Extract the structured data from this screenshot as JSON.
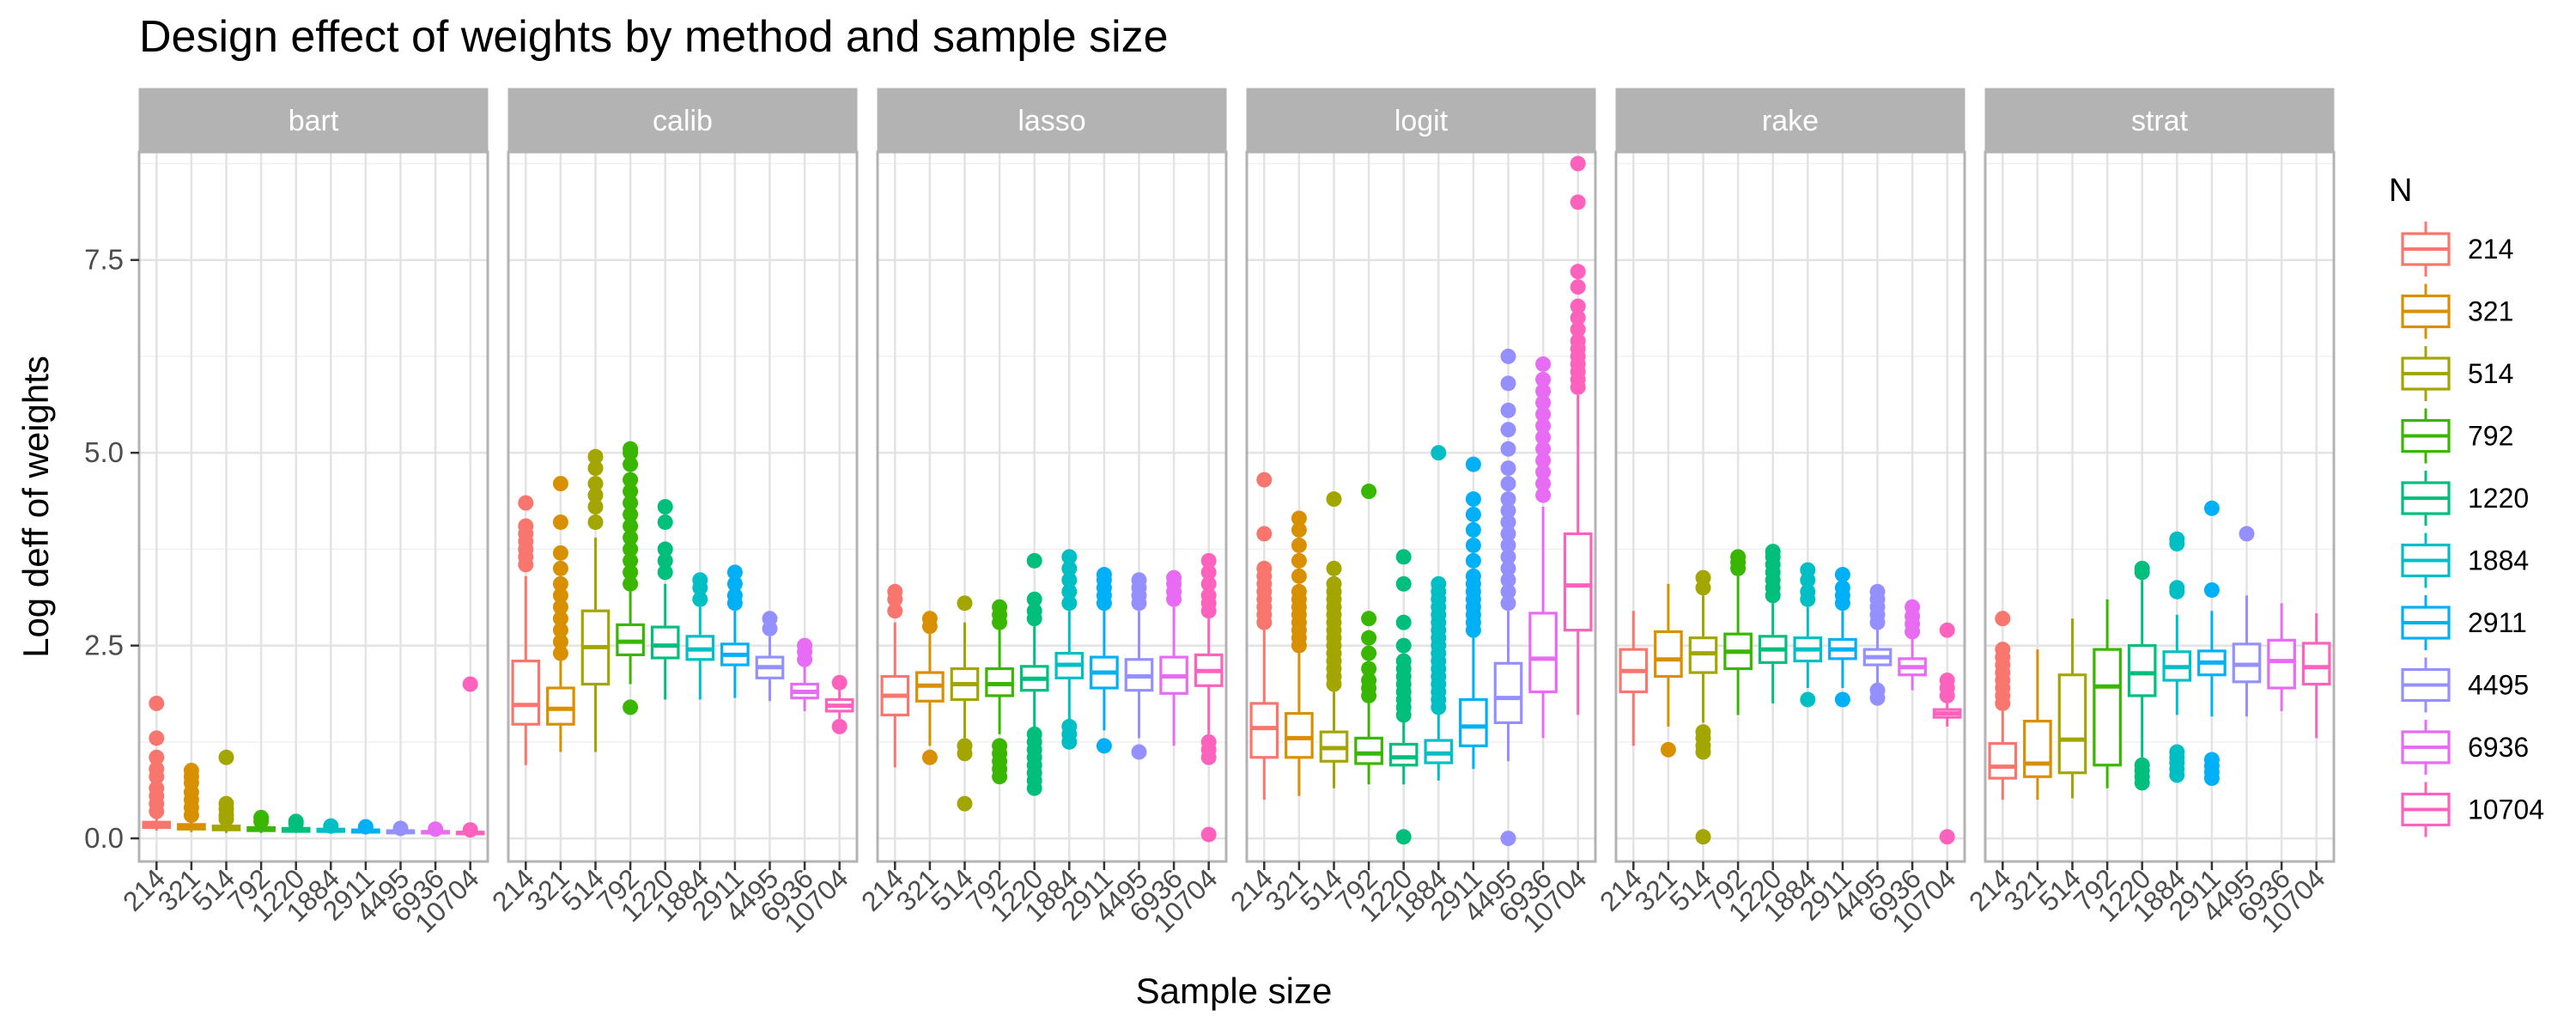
{
  "chart_data": {
    "type": "box",
    "title": "Design effect of weights by method and sample size",
    "xlabel": "Sample size",
    "ylabel": "Log deff of weights",
    "ylim": [
      -0.3,
      8.9
    ],
    "y_ticks": [
      "0.0",
      "2.5",
      "5.0",
      "7.5"
    ],
    "y_tick_values": [
      0,
      2.5,
      5,
      7.5
    ],
    "grid": true,
    "legend": {
      "title": "N",
      "placement": "right"
    },
    "categories": [
      "214",
      "321",
      "514",
      "792",
      "1220",
      "1884",
      "2911",
      "4495",
      "6936",
      "10704"
    ],
    "colors": [
      "#F8766D",
      "#D89000",
      "#A3A500",
      "#39B600",
      "#00BF7D",
      "#00BFC4",
      "#00B0F6",
      "#9590FF",
      "#E76BF3",
      "#FF62BC"
    ],
    "panels": [
      {
        "name": "bart",
        "boxes": [
          {
            "q1": 0.14,
            "median": 0.17,
            "q3": 0.21,
            "lo": 0.1,
            "hi": 0.3,
            "outliers": [
              0.35,
              0.45,
              0.55,
              0.65,
              0.8,
              0.9,
              1.05,
              1.3,
              1.75
            ]
          },
          {
            "q1": 0.12,
            "median": 0.15,
            "q3": 0.18,
            "lo": 0.08,
            "hi": 0.25,
            "outliers": [
              0.3,
              0.4,
              0.5,
              0.6,
              0.72,
              0.8,
              0.88
            ]
          },
          {
            "q1": 0.11,
            "median": 0.13,
            "q3": 0.16,
            "lo": 0.07,
            "hi": 0.2,
            "outliers": [
              0.25,
              0.3,
              0.38,
              0.45,
              1.05
            ]
          },
          {
            "q1": 0.1,
            "median": 0.12,
            "q3": 0.14,
            "lo": 0.07,
            "hi": 0.18,
            "outliers": [
              0.22,
              0.27
            ]
          },
          {
            "q1": 0.09,
            "median": 0.11,
            "q3": 0.13,
            "lo": 0.07,
            "hi": 0.16,
            "outliers": [
              0.19,
              0.22
            ]
          },
          {
            "q1": 0.09,
            "median": 0.1,
            "q3": 0.12,
            "lo": 0.07,
            "hi": 0.14,
            "outliers": [
              0.16
            ]
          },
          {
            "q1": 0.08,
            "median": 0.1,
            "q3": 0.11,
            "lo": 0.06,
            "hi": 0.13,
            "outliers": [
              0.15
            ]
          },
          {
            "q1": 0.07,
            "median": 0.09,
            "q3": 0.1,
            "lo": 0.05,
            "hi": 0.12,
            "outliers": [
              0.13
            ]
          },
          {
            "q1": 0.07,
            "median": 0.08,
            "q3": 0.09,
            "lo": 0.05,
            "hi": 0.11,
            "outliers": [
              0.12
            ]
          },
          {
            "q1": 0.06,
            "median": 0.07,
            "q3": 0.08,
            "lo": 0.04,
            "hi": 0.1,
            "outliers": [
              0.11,
              2.0
            ]
          }
        ]
      },
      {
        "name": "calib",
        "boxes": [
          {
            "q1": 1.48,
            "median": 1.73,
            "q3": 2.3,
            "lo": 0.95,
            "hi": 3.4,
            "outliers": [
              3.55,
              3.65,
              3.75,
              3.85,
              3.95,
              4.05,
              4.35
            ]
          },
          {
            "q1": 1.48,
            "median": 1.68,
            "q3": 1.95,
            "lo": 1.12,
            "hi": 2.3,
            "outliers": [
              2.4,
              2.55,
              2.7,
              2.85,
              3.0,
              3.15,
              3.3,
              3.5,
              3.7,
              4.1,
              4.6
            ]
          },
          {
            "q1": 2.0,
            "median": 2.48,
            "q3": 2.95,
            "lo": 1.12,
            "hi": 3.9,
            "outliers": [
              4.1,
              4.3,
              4.45,
              4.6,
              4.8,
              4.95
            ]
          },
          {
            "q1": 2.38,
            "median": 2.55,
            "q3": 2.77,
            "lo": 2.0,
            "hi": 3.2,
            "outliers": [
              1.7,
              3.3,
              3.45,
              3.6,
              3.75,
              3.9,
              4.05,
              4.2,
              4.35,
              4.5,
              4.65,
              4.85,
              5.0,
              5.05
            ]
          },
          {
            "q1": 2.34,
            "median": 2.5,
            "q3": 2.74,
            "lo": 1.8,
            "hi": 3.3,
            "outliers": [
              3.45,
              3.6,
              3.75,
              4.1,
              4.3
            ]
          },
          {
            "q1": 2.32,
            "median": 2.45,
            "q3": 2.62,
            "lo": 1.8,
            "hi": 3.0,
            "outliers": [
              3.1,
              3.25,
              3.35
            ]
          },
          {
            "q1": 2.25,
            "median": 2.38,
            "q3": 2.52,
            "lo": 1.82,
            "hi": 2.95,
            "outliers": [
              3.05,
              3.15,
              3.3,
              3.45
            ]
          },
          {
            "q1": 2.08,
            "median": 2.22,
            "q3": 2.35,
            "lo": 1.78,
            "hi": 2.62,
            "outliers": [
              2.72,
              2.85
            ]
          },
          {
            "q1": 1.82,
            "median": 1.9,
            "q3": 2.0,
            "lo": 1.65,
            "hi": 2.25,
            "outliers": [
              2.32,
              2.42,
              2.5
            ]
          },
          {
            "q1": 1.65,
            "median": 1.72,
            "q3": 1.8,
            "lo": 1.55,
            "hi": 1.95,
            "outliers": [
              1.45,
              2.02
            ]
          }
        ]
      },
      {
        "name": "lasso",
        "boxes": [
          {
            "q1": 1.6,
            "median": 1.85,
            "q3": 2.1,
            "lo": 0.92,
            "hi": 2.8,
            "outliers": [
              2.95,
              3.1,
              3.2
            ]
          },
          {
            "q1": 1.78,
            "median": 1.98,
            "q3": 2.15,
            "lo": 1.2,
            "hi": 2.65,
            "outliers": [
              1.05,
              2.75,
              2.85
            ]
          },
          {
            "q1": 1.8,
            "median": 2.0,
            "q3": 2.2,
            "lo": 1.3,
            "hi": 2.8,
            "outliers": [
              0.45,
              1.1,
              1.2,
              3.05
            ]
          },
          {
            "q1": 1.85,
            "median": 2.0,
            "q3": 2.2,
            "lo": 1.35,
            "hi": 2.7,
            "outliers": [
              0.8,
              0.9,
              1.0,
              1.1,
              1.2,
              2.8,
              2.9,
              3.0
            ]
          },
          {
            "q1": 1.92,
            "median": 2.07,
            "q3": 2.23,
            "lo": 1.4,
            "hi": 2.75,
            "outliers": [
              0.65,
              0.75,
              0.85,
              0.95,
              1.05,
              1.15,
              1.25,
              1.35,
              2.85,
              2.95,
              3.1,
              3.6
            ]
          },
          {
            "q1": 2.08,
            "median": 2.25,
            "q3": 2.4,
            "lo": 1.5,
            "hi": 2.95,
            "outliers": [
              1.25,
              1.35,
              1.45,
              3.05,
              3.2,
              3.35,
              3.5,
              3.65
            ]
          },
          {
            "q1": 1.95,
            "median": 2.15,
            "q3": 2.35,
            "lo": 1.4,
            "hi": 2.95,
            "outliers": [
              1.2,
              3.05,
              3.15,
              3.25,
              3.35,
              3.42
            ]
          },
          {
            "q1": 1.92,
            "median": 2.1,
            "q3": 2.32,
            "lo": 1.3,
            "hi": 2.95,
            "outliers": [
              1.12,
              3.05,
              3.15,
              3.25,
              3.35
            ]
          },
          {
            "q1": 1.88,
            "median": 2.1,
            "q3": 2.35,
            "lo": 1.2,
            "hi": 3.0,
            "outliers": [
              3.1,
              3.2,
              3.3,
              3.38
            ]
          },
          {
            "q1": 1.98,
            "median": 2.17,
            "q3": 2.38,
            "lo": 1.35,
            "hi": 2.85,
            "outliers": [
              0.05,
              1.05,
              1.15,
              1.25,
              2.95,
              3.05,
              3.15,
              3.3,
              3.45,
              3.6
            ]
          }
        ]
      },
      {
        "name": "logit",
        "boxes": [
          {
            "q1": 1.05,
            "median": 1.43,
            "q3": 1.75,
            "lo": 0.5,
            "hi": 2.7,
            "outliers": [
              2.8,
              2.9,
              3.0,
              3.1,
              3.2,
              3.3,
              3.4,
              3.5,
              3.95,
              4.65
            ]
          },
          {
            "q1": 1.05,
            "median": 1.3,
            "q3": 1.62,
            "lo": 0.55,
            "hi": 2.4,
            "outliers": [
              2.5,
              2.6,
              2.7,
              2.8,
              2.9,
              3.0,
              3.1,
              3.2,
              3.4,
              3.6,
              3.8,
              4.0,
              4.15
            ]
          },
          {
            "q1": 1.0,
            "median": 1.17,
            "q3": 1.38,
            "lo": 0.65,
            "hi": 1.9,
            "outliers": [
              2.0,
              2.1,
              2.2,
              2.3,
              2.4,
              2.5,
              2.6,
              2.7,
              2.8,
              2.9,
              3.0,
              3.1,
              3.2,
              3.3,
              3.5,
              4.4
            ]
          },
          {
            "q1": 0.97,
            "median": 1.1,
            "q3": 1.3,
            "lo": 0.7,
            "hi": 1.75,
            "outliers": [
              1.85,
              1.95,
              2.05,
              2.2,
              2.4,
              2.6,
              2.85,
              4.5
            ]
          },
          {
            "q1": 0.95,
            "median": 1.05,
            "q3": 1.22,
            "lo": 0.7,
            "hi": 1.55,
            "outliers": [
              0.02,
              1.6,
              1.7,
              1.8,
              1.9,
              2.0,
              2.1,
              2.2,
              2.3,
              2.5,
              2.8,
              3.3,
              3.65
            ]
          },
          {
            "q1": 0.98,
            "median": 1.1,
            "q3": 1.27,
            "lo": 0.75,
            "hi": 1.62,
            "outliers": [
              1.7,
              1.8,
              1.9,
              2.0,
              2.1,
              2.2,
              2.3,
              2.4,
              2.5,
              2.6,
              2.7,
              2.8,
              2.9,
              3.0,
              3.1,
              3.2,
              3.3,
              5.0
            ]
          },
          {
            "q1": 1.2,
            "median": 1.45,
            "q3": 1.8,
            "lo": 0.9,
            "hi": 2.6,
            "outliers": [
              2.7,
              2.8,
              2.9,
              3.0,
              3.1,
              3.2,
              3.3,
              3.4,
              3.6,
              3.8,
              4.0,
              4.2,
              4.4,
              4.85
            ]
          },
          {
            "q1": 1.5,
            "median": 1.82,
            "q3": 2.27,
            "lo": 1.0,
            "hi": 2.95,
            "outliers": [
              0.0,
              3.05,
              3.2,
              3.35,
              3.5,
              3.65,
              3.8,
              3.95,
              4.1,
              4.25,
              4.4,
              4.6,
              4.8,
              5.05,
              5.3,
              5.55,
              5.9,
              6.25
            ]
          },
          {
            "q1": 1.9,
            "median": 2.33,
            "q3": 2.92,
            "lo": 1.3,
            "hi": 4.3,
            "outliers": [
              4.45,
              4.6,
              4.75,
              4.9,
              5.05,
              5.2,
              5.35,
              5.5,
              5.65,
              5.8,
              5.95,
              6.15
            ]
          },
          {
            "q1": 2.7,
            "median": 3.28,
            "q3": 3.95,
            "lo": 1.6,
            "hi": 5.75,
            "outliers": [
              5.85,
              5.95,
              6.05,
              6.15,
              6.25,
              6.35,
              6.45,
              6.6,
              6.75,
              6.9,
              7.15,
              7.35,
              8.25,
              8.75
            ]
          }
        ]
      },
      {
        "name": "rake",
        "boxes": [
          {
            "q1": 1.9,
            "median": 2.17,
            "q3": 2.45,
            "lo": 1.2,
            "hi": 2.95,
            "outliers": []
          },
          {
            "q1": 2.1,
            "median": 2.32,
            "q3": 2.68,
            "lo": 1.45,
            "hi": 3.3,
            "outliers": [
              1.15
            ]
          },
          {
            "q1": 2.15,
            "median": 2.4,
            "q3": 2.6,
            "lo": 1.5,
            "hi": 3.15,
            "outliers": [
              0.02,
              1.12,
              1.2,
              1.3,
              1.38,
              3.25,
              3.38
            ]
          },
          {
            "q1": 2.2,
            "median": 2.42,
            "q3": 2.65,
            "lo": 1.6,
            "hi": 3.4,
            "outliers": [
              3.5,
              3.58,
              3.65
            ]
          },
          {
            "q1": 2.28,
            "median": 2.45,
            "q3": 2.62,
            "lo": 1.75,
            "hi": 3.05,
            "outliers": [
              3.15,
              3.25,
              3.35,
              3.45,
              3.55,
              3.65,
              3.72
            ]
          },
          {
            "q1": 2.3,
            "median": 2.45,
            "q3": 2.6,
            "lo": 1.95,
            "hi": 3.0,
            "outliers": [
              1.8,
              3.1,
              3.2,
              3.35,
              3.48
            ]
          },
          {
            "q1": 2.33,
            "median": 2.45,
            "q3": 2.58,
            "lo": 1.95,
            "hi": 2.95,
            "outliers": [
              1.8,
              3.05,
              3.15,
              3.25,
              3.42
            ]
          },
          {
            "q1": 2.25,
            "median": 2.35,
            "q3": 2.45,
            "lo": 2.0,
            "hi": 2.72,
            "outliers": [
              1.82,
              1.92,
              2.8,
              2.9,
              3.0,
              3.1,
              3.2
            ]
          },
          {
            "q1": 2.12,
            "median": 2.22,
            "q3": 2.33,
            "lo": 1.92,
            "hi": 2.6,
            "outliers": [
              2.68,
              2.78,
              2.88,
              3.0
            ]
          },
          {
            "q1": 1.57,
            "median": 1.62,
            "q3": 1.67,
            "lo": 1.45,
            "hi": 1.78,
            "outliers": [
              0.02,
              1.85,
              1.95,
              2.05,
              2.7
            ]
          }
        ]
      },
      {
        "name": "strat",
        "boxes": [
          {
            "q1": 0.78,
            "median": 0.93,
            "q3": 1.23,
            "lo": 0.5,
            "hi": 1.65,
            "outliers": [
              1.75,
              1.85,
              1.95,
              2.05,
              2.15,
              2.25,
              2.35,
              2.45,
              2.85
            ]
          },
          {
            "q1": 0.8,
            "median": 0.97,
            "q3": 1.52,
            "lo": 0.5,
            "hi": 2.45,
            "outliers": []
          },
          {
            "q1": 0.85,
            "median": 1.28,
            "q3": 2.12,
            "lo": 0.52,
            "hi": 2.85,
            "outliers": []
          },
          {
            "q1": 0.95,
            "median": 1.97,
            "q3": 2.45,
            "lo": 0.65,
            "hi": 3.1,
            "outliers": []
          },
          {
            "q1": 1.85,
            "median": 2.14,
            "q3": 2.5,
            "lo": 1.05,
            "hi": 3.35,
            "outliers": [
              0.72,
              0.8,
              0.88,
              0.95,
              3.45,
              3.5
            ]
          },
          {
            "q1": 2.05,
            "median": 2.22,
            "q3": 2.42,
            "lo": 1.6,
            "hi": 2.9,
            "outliers": [
              0.82,
              0.9,
              0.98,
              1.05,
              1.12,
              3.2,
              3.25,
              3.82,
              3.88
            ]
          },
          {
            "q1": 2.12,
            "median": 2.28,
            "q3": 2.43,
            "lo": 1.58,
            "hi": 2.95,
            "outliers": [
              0.78,
              0.86,
              0.94,
              1.02,
              3.22,
              4.28
            ]
          },
          {
            "q1": 2.03,
            "median": 2.25,
            "q3": 2.52,
            "lo": 1.58,
            "hi": 3.15,
            "outliers": [
              3.95
            ]
          },
          {
            "q1": 1.95,
            "median": 2.3,
            "q3": 2.57,
            "lo": 1.65,
            "hi": 3.05,
            "outliers": []
          },
          {
            "q1": 2.0,
            "median": 2.22,
            "q3": 2.53,
            "lo": 1.3,
            "hi": 2.92,
            "outliers": []
          }
        ]
      }
    ]
  }
}
